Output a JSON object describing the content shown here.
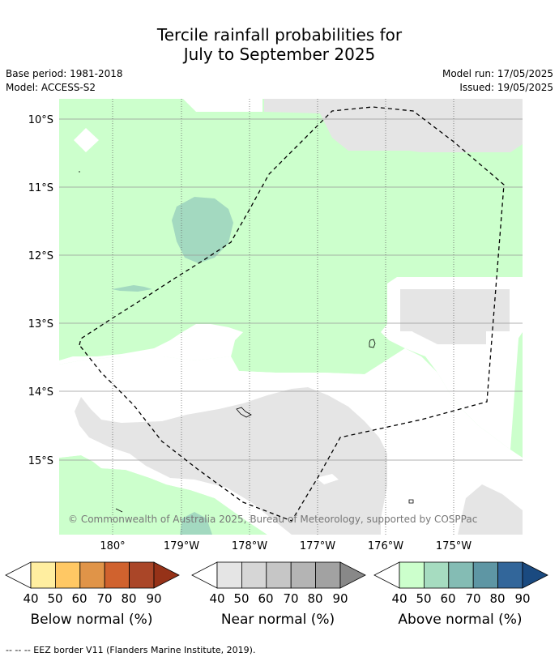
{
  "title": {
    "line1": "Tercile rainfall probabilities for",
    "line2": "July to September 2025"
  },
  "info": {
    "base_period": "Base period: 1981-2018",
    "model": "Model: ACCESS-S2",
    "model_run": "Model run: 17/05/2025",
    "issued": "Issued: 19/05/2025"
  },
  "map": {
    "lat_labels": [
      "10°S",
      "11°S",
      "12°S",
      "13°S",
      "14°S",
      "15°S"
    ],
    "lon_labels": [
      "180°",
      "179°W",
      "178°W",
      "177°W",
      "176°W",
      "175°W"
    ],
    "copyright": "© Commonwealth of Australia 2025, Bureau of Meteorology, supported by COSPPac",
    "colors": {
      "above_50": "#ccffcc",
      "above_60": "#a3d9c0",
      "near_50": "#e5e5e5",
      "eez_border": "#000000"
    }
  },
  "legends": [
    {
      "label": "Below normal (%)",
      "ticks": [
        "40",
        "50",
        "60",
        "70",
        "80",
        "90"
      ],
      "colors": [
        "#ffeea0",
        "#ffc864",
        "#e09448",
        "#d0622e",
        "#aa4628",
        "#963218"
      ]
    },
    {
      "label": "Near normal (%)",
      "ticks": [
        "40",
        "50",
        "60",
        "70",
        "80",
        "90"
      ],
      "colors": [
        "#e5e5e5",
        "#d6d6d6",
        "#c6c6c6",
        "#b4b4b4",
        "#a2a2a2",
        "#888888"
      ]
    },
    {
      "label": "Above normal (%)",
      "ticks": [
        "40",
        "50",
        "60",
        "70",
        "80",
        "90"
      ],
      "colors": [
        "#ccffcc",
        "#a6dcc0",
        "#84bcb4",
        "#5e96a4",
        "#32669a",
        "#1a4a80"
      ]
    }
  ],
  "footer": "--  --  -- EEZ border V11 (Flanders Marine Institute, 2019)."
}
